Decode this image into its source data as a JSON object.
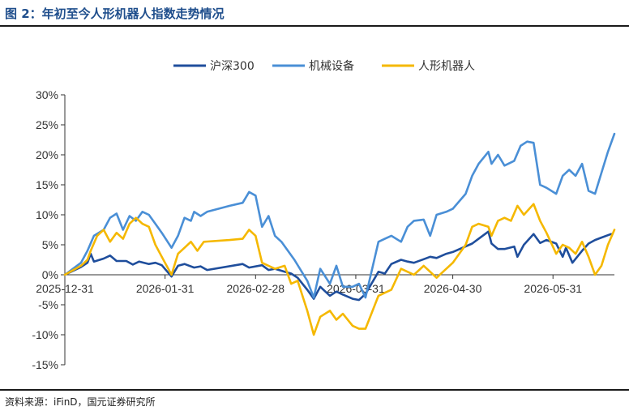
{
  "figure": {
    "title": "图 2：年初至今人形机器人指数走势情况",
    "source": "资料来源：iFinD，国元证券研究所"
  },
  "chart_data": {
    "type": "line",
    "title": "",
    "xlabel": "",
    "ylabel": "",
    "ylim": [
      -15,
      30
    ],
    "yticks": [
      -15,
      -10,
      -5,
      0,
      5,
      10,
      15,
      20,
      25,
      30
    ],
    "ytick_labels": [
      "-15%",
      "-10%",
      "-5%",
      "0%",
      "5%",
      "10%",
      "15%",
      "20%",
      "25%",
      "30%"
    ],
    "xlim": [
      "2025-12-31",
      "2026-06-19"
    ],
    "xticks": [
      "2025-12-31",
      "2026-01-31",
      "2026-02-28",
      "2026-03-31",
      "2026-04-30",
      "2026-05-31"
    ],
    "grid": false,
    "legend_position": "top-center",
    "colors": {
      "沪深300": "#1f4e9c",
      "机械设备": "#4a8fd6",
      "人形机器人": "#f5b800"
    },
    "series": [
      {
        "name": "沪深300",
        "points": [
          [
            "2025-12-31",
            0.0
          ],
          [
            "2026-01-05",
            1.3
          ],
          [
            "2026-01-07",
            2.0
          ],
          [
            "2026-01-08",
            3.5
          ],
          [
            "2026-01-09",
            2.2
          ],
          [
            "2026-01-12",
            2.7
          ],
          [
            "2026-01-14",
            3.2
          ],
          [
            "2026-01-16",
            2.3
          ],
          [
            "2026-01-19",
            2.3
          ],
          [
            "2026-01-21",
            1.7
          ],
          [
            "2026-01-23",
            2.2
          ],
          [
            "2026-01-26",
            1.8
          ],
          [
            "2026-01-28",
            2.0
          ],
          [
            "2026-01-30",
            1.6
          ],
          [
            "2026-02-02",
            -0.3
          ],
          [
            "2026-02-04",
            1.5
          ],
          [
            "2026-02-06",
            1.8
          ],
          [
            "2026-02-09",
            1.2
          ],
          [
            "2026-02-11",
            1.4
          ],
          [
            "2026-02-13",
            0.8
          ],
          [
            "2026-02-24",
            1.8
          ],
          [
            "2026-02-26",
            1.2
          ],
          [
            "2026-03-02",
            1.6
          ],
          [
            "2026-03-04",
            0.8
          ],
          [
            "2026-03-06",
            1.0
          ],
          [
            "2026-03-09",
            0.5
          ],
          [
            "2026-03-11",
            0.2
          ],
          [
            "2026-03-13",
            -0.5
          ],
          [
            "2026-03-16",
            -2.5
          ],
          [
            "2026-03-18",
            -4.0
          ],
          [
            "2026-03-20",
            -2.0
          ],
          [
            "2026-03-23",
            -3.5
          ],
          [
            "2026-03-25",
            -2.8
          ],
          [
            "2026-03-27",
            -3.3
          ],
          [
            "2026-03-30",
            -4.0
          ],
          [
            "2026-04-01",
            -4.2
          ],
          [
            "2026-04-03",
            -3.2
          ],
          [
            "2026-04-07",
            0.5
          ],
          [
            "2026-04-09",
            0.2
          ],
          [
            "2026-04-11",
            1.8
          ],
          [
            "2026-04-14",
            2.5
          ],
          [
            "2026-04-16",
            2.2
          ],
          [
            "2026-04-18",
            2.0
          ],
          [
            "2026-04-21",
            2.6
          ],
          [
            "2026-04-23",
            3.0
          ],
          [
            "2026-04-25",
            2.8
          ],
          [
            "2026-04-28",
            3.5
          ],
          [
            "2026-04-30",
            3.8
          ],
          [
            "2026-05-06",
            5.2
          ],
          [
            "2026-05-08",
            6.0
          ],
          [
            "2026-05-11",
            7.2
          ],
          [
            "2026-05-12",
            5.2
          ],
          [
            "2026-05-14",
            4.3
          ],
          [
            "2026-05-16",
            4.3
          ],
          [
            "2026-05-19",
            4.7
          ],
          [
            "2026-05-20",
            3.0
          ],
          [
            "2026-05-22",
            5.0
          ],
          [
            "2026-05-25",
            6.8
          ],
          [
            "2026-05-27",
            5.3
          ],
          [
            "2026-05-29",
            5.8
          ],
          [
            "2026-06-01",
            5.2
          ],
          [
            "2026-06-03",
            3.0
          ],
          [
            "2026-06-04",
            4.5
          ],
          [
            "2026-06-06",
            2.0
          ],
          [
            "2026-06-09",
            4.0
          ],
          [
            "2026-06-11",
            5.2
          ],
          [
            "2026-06-13",
            5.8
          ],
          [
            "2026-06-15",
            6.2
          ],
          [
            "2026-06-18",
            6.8
          ]
        ]
      },
      {
        "name": "机械设备",
        "points": [
          [
            "2025-12-31",
            0.0
          ],
          [
            "2026-01-05",
            2.0
          ],
          [
            "2026-01-07",
            4.0
          ],
          [
            "2026-01-09",
            6.5
          ],
          [
            "2026-01-12",
            7.5
          ],
          [
            "2026-01-14",
            9.5
          ],
          [
            "2026-01-16",
            10.2
          ],
          [
            "2026-01-18",
            7.5
          ],
          [
            "2026-01-20",
            9.8
          ],
          [
            "2026-01-22",
            9.0
          ],
          [
            "2026-01-24",
            10.5
          ],
          [
            "2026-01-26",
            10.0
          ],
          [
            "2026-01-28",
            8.5
          ],
          [
            "2026-01-30",
            7.0
          ],
          [
            "2026-02-02",
            4.5
          ],
          [
            "2026-02-04",
            6.5
          ],
          [
            "2026-02-06",
            9.5
          ],
          [
            "2026-02-08",
            9.0
          ],
          [
            "2026-02-09",
            10.5
          ],
          [
            "2026-02-11",
            9.8
          ],
          [
            "2026-02-13",
            10.5
          ],
          [
            "2026-02-20",
            11.5
          ],
          [
            "2026-02-24",
            12.0
          ],
          [
            "2026-02-26",
            13.8
          ],
          [
            "2026-02-28",
            13.2
          ],
          [
            "2026-03-02",
            8.0
          ],
          [
            "2026-03-04",
            9.8
          ],
          [
            "2026-03-06",
            6.5
          ],
          [
            "2026-03-08",
            5.5
          ],
          [
            "2026-03-10",
            4.0
          ],
          [
            "2026-03-12",
            2.5
          ],
          [
            "2026-03-16",
            -1.0
          ],
          [
            "2026-03-18",
            -3.8
          ],
          [
            "2026-03-20",
            1.0
          ],
          [
            "2026-03-23",
            -1.5
          ],
          [
            "2026-03-25",
            1.5
          ],
          [
            "2026-03-27",
            -2.0
          ],
          [
            "2026-03-30",
            -2.0
          ],
          [
            "2026-04-01",
            -1.5
          ],
          [
            "2026-04-03",
            -3.8
          ],
          [
            "2026-04-07",
            5.5
          ],
          [
            "2026-04-09",
            6.0
          ],
          [
            "2026-04-11",
            6.5
          ],
          [
            "2026-04-14",
            5.5
          ],
          [
            "2026-04-16",
            8.0
          ],
          [
            "2026-04-18",
            9.0
          ],
          [
            "2026-04-21",
            9.2
          ],
          [
            "2026-04-23",
            6.5
          ],
          [
            "2026-04-25",
            10.0
          ],
          [
            "2026-04-28",
            10.5
          ],
          [
            "2026-04-30",
            11.0
          ],
          [
            "2026-05-04",
            13.5
          ],
          [
            "2026-05-06",
            16.5
          ],
          [
            "2026-05-08",
            18.5
          ],
          [
            "2026-05-11",
            20.5
          ],
          [
            "2026-05-12",
            18.5
          ],
          [
            "2026-05-14",
            20.0
          ],
          [
            "2026-05-16",
            18.2
          ],
          [
            "2026-05-19",
            19.0
          ],
          [
            "2026-05-21",
            21.5
          ],
          [
            "2026-05-23",
            22.2
          ],
          [
            "2026-05-25",
            22.0
          ],
          [
            "2026-05-27",
            15.0
          ],
          [
            "2026-05-29",
            14.5
          ],
          [
            "2026-06-01",
            13.5
          ],
          [
            "2026-06-03",
            16.5
          ],
          [
            "2026-06-05",
            17.5
          ],
          [
            "2026-06-07",
            16.5
          ],
          [
            "2026-06-09",
            18.5
          ],
          [
            "2026-06-11",
            14.0
          ],
          [
            "2026-06-13",
            13.5
          ],
          [
            "2026-06-15",
            17.0
          ],
          [
            "2026-06-17",
            20.5
          ],
          [
            "2026-06-19",
            23.5
          ]
        ]
      },
      {
        "name": "人形机器人",
        "points": [
          [
            "2025-12-31",
            0.0
          ],
          [
            "2026-01-05",
            1.5
          ],
          [
            "2026-01-07",
            2.5
          ],
          [
            "2026-01-08",
            4.0
          ],
          [
            "2026-01-10",
            6.5
          ],
          [
            "2026-01-12",
            7.5
          ],
          [
            "2026-01-14",
            5.5
          ],
          [
            "2026-01-16",
            7.0
          ],
          [
            "2026-01-18",
            6.0
          ],
          [
            "2026-01-20",
            8.5
          ],
          [
            "2026-01-22",
            9.5
          ],
          [
            "2026-01-24",
            8.5
          ],
          [
            "2026-01-26",
            8.0
          ],
          [
            "2026-01-28",
            5.0
          ],
          [
            "2026-01-30",
            3.0
          ],
          [
            "2026-02-02",
            0.0
          ],
          [
            "2026-02-04",
            3.5
          ],
          [
            "2026-02-06",
            4.5
          ],
          [
            "2026-02-08",
            5.5
          ],
          [
            "2026-02-10",
            4.0
          ],
          [
            "2026-02-12",
            5.5
          ],
          [
            "2026-02-20",
            5.8
          ],
          [
            "2026-02-24",
            6.0
          ],
          [
            "2026-02-26",
            7.5
          ],
          [
            "2026-02-28",
            6.5
          ],
          [
            "2026-03-02",
            2.0
          ],
          [
            "2026-03-04",
            1.5
          ],
          [
            "2026-03-06",
            1.0
          ],
          [
            "2026-03-09",
            1.5
          ],
          [
            "2026-03-11",
            -1.5
          ],
          [
            "2026-03-13",
            -1.0
          ],
          [
            "2026-03-16",
            -6.0
          ],
          [
            "2026-03-18",
            -10.0
          ],
          [
            "2026-03-20",
            -7.0
          ],
          [
            "2026-03-23",
            -6.0
          ],
          [
            "2026-03-25",
            -7.5
          ],
          [
            "2026-03-27",
            -6.5
          ],
          [
            "2026-03-30",
            -8.5
          ],
          [
            "2026-04-01",
            -9.0
          ],
          [
            "2026-04-03",
            -9.0
          ],
          [
            "2026-04-07",
            -3.5
          ],
          [
            "2026-04-09",
            -3.0
          ],
          [
            "2026-04-11",
            -2.5
          ],
          [
            "2026-04-14",
            1.0
          ],
          [
            "2026-04-16",
            0.5
          ],
          [
            "2026-04-18",
            0.0
          ],
          [
            "2026-04-21",
            1.5
          ],
          [
            "2026-04-23",
            0.5
          ],
          [
            "2026-04-25",
            -0.5
          ],
          [
            "2026-04-28",
            1.0
          ],
          [
            "2026-04-30",
            2.0
          ],
          [
            "2026-05-04",
            5.0
          ],
          [
            "2026-05-06",
            8.0
          ],
          [
            "2026-05-08",
            8.5
          ],
          [
            "2026-05-11",
            8.0
          ],
          [
            "2026-05-12",
            6.5
          ],
          [
            "2026-05-14",
            9.0
          ],
          [
            "2026-05-16",
            9.5
          ],
          [
            "2026-05-18",
            9.0
          ],
          [
            "2026-05-20",
            11.5
          ],
          [
            "2026-05-22",
            10.0
          ],
          [
            "2026-05-25",
            11.8
          ],
          [
            "2026-05-27",
            9.0
          ],
          [
            "2026-05-29",
            7.0
          ],
          [
            "2026-06-01",
            3.5
          ],
          [
            "2026-06-03",
            5.0
          ],
          [
            "2026-06-05",
            4.5
          ],
          [
            "2026-06-07",
            3.5
          ],
          [
            "2026-06-09",
            5.5
          ],
          [
            "2026-06-11",
            3.0
          ],
          [
            "2026-06-13",
            0.0
          ],
          [
            "2026-06-15",
            1.5
          ],
          [
            "2026-06-17",
            5.0
          ],
          [
            "2026-06-19",
            7.5
          ]
        ]
      }
    ]
  }
}
